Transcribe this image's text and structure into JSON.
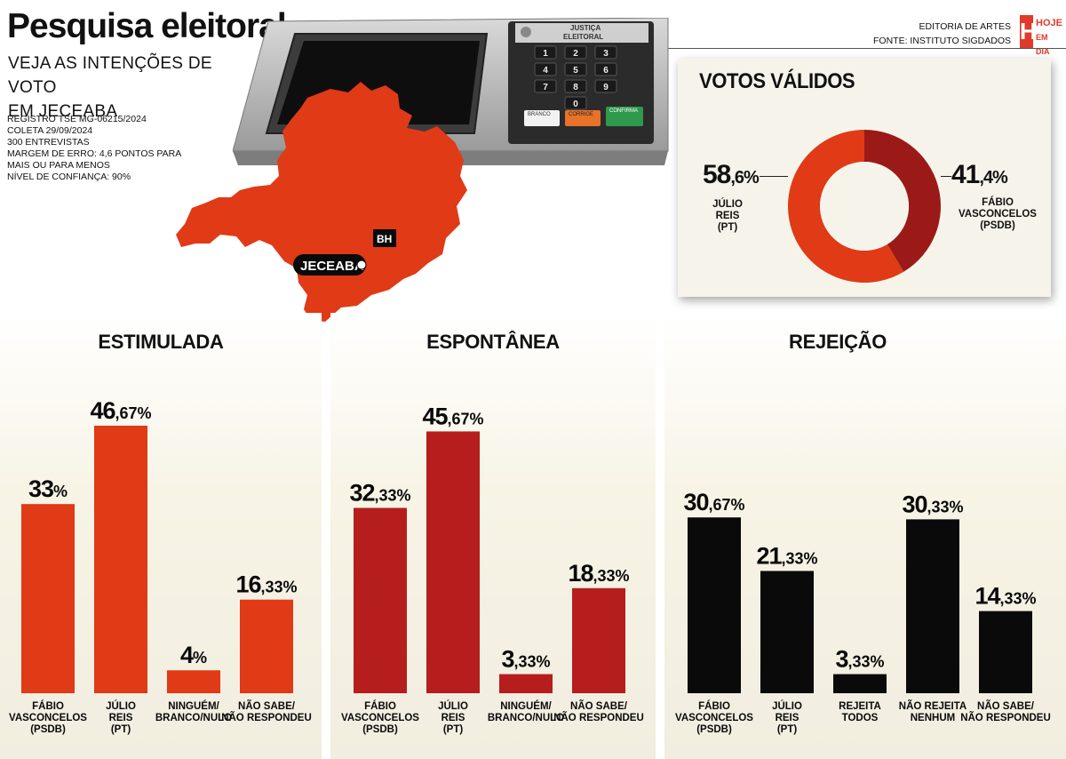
{
  "header": {
    "title": "Pesquisa eleitoral",
    "subtitle_lines": [
      "VEJA AS INTENÇÕES DE VOTO",
      "EM JECEABA"
    ],
    "meta_lines": [
      "REGISTRO TSE MG-06215/2024",
      "COLETA 29/09/2024",
      "300 ENTREVISTAS",
      "MARGEM DE ERRO: 4,6 PONTOS PARA",
      "MAIS OU PARA MENOS",
      "NÍVEL DE CONFIANÇA: 90%"
    ],
    "credit_1": "EDITORIA DE ARTES",
    "credit_2": "FONTE: INSTITUTO SIGDADOS",
    "logo_letter": "H",
    "logo_word_1": "HOJE",
    "logo_word_2": "EM DIA"
  },
  "urna": {
    "label_1": "JUSTIÇA",
    "label_2": "ELEITORAL",
    "keys": [
      "1",
      "2",
      "3",
      "4",
      "5",
      "6",
      "7",
      "8",
      "9",
      "0"
    ],
    "btn_branco": "BRANCO",
    "btn_corrige": "CORRIGE",
    "btn_confirma": "CONFIRMA"
  },
  "map": {
    "capital_label": "BH",
    "city_label": "JECEABA",
    "color": "#e03a16"
  },
  "colors": {
    "estimulada": "#e03a16",
    "espontanea": "#b51e1c",
    "rejeicao": "#0a0a0a",
    "donut_primary": "#e03a16",
    "donut_secondary": "#9b1a18"
  },
  "chart_data": [
    {
      "type": "pie",
      "title": "VOTOS VÁLIDOS",
      "slices": [
        {
          "label": "JÚLIO REIS (PT)",
          "label_lines": [
            "JÚLIO REIS",
            "(PT)"
          ],
          "value": 58.6,
          "int": "58",
          "dec": ",6%"
        },
        {
          "label": "FÁBIO VASCONCELOS (PSDB)",
          "label_lines": [
            "FÁBIO VASCONCELOS",
            "(PSDB)"
          ],
          "value": 41.4,
          "int": "41",
          "dec": ",4%"
        }
      ]
    },
    {
      "type": "bar",
      "title": "ESTIMULADA",
      "categories": [
        [
          "FÁBIO",
          "VASCONCELOS",
          "(PSDB)"
        ],
        [
          "JÚLIO",
          "REIS",
          "(PT)"
        ],
        [
          "NINGUÉM/",
          "BRANCO/NULO"
        ],
        [
          "NÃO SABE/",
          "NÃO RESPONDEU"
        ]
      ],
      "values": [
        33,
        46.67,
        4,
        16.33
      ],
      "labels": [
        {
          "int": "33",
          "dec": "%"
        },
        {
          "int": "46",
          "dec": ",67%"
        },
        {
          "int": "4",
          "dec": "%"
        },
        {
          "int": "16",
          "dec": ",33%"
        }
      ],
      "ylim": [
        0,
        50
      ]
    },
    {
      "type": "bar",
      "title": "ESPONTÂNEA",
      "categories": [
        [
          "FÁBIO",
          "VASCONCELOS",
          "(PSDB)"
        ],
        [
          "JÚLIO",
          "REIS",
          "(PT)"
        ],
        [
          "NINGUÉM/",
          "BRANCO/NULO"
        ],
        [
          "NÃO SABE/",
          "NÃO RESPONDEU"
        ]
      ],
      "values": [
        32.33,
        45.67,
        3.33,
        18.33
      ],
      "labels": [
        {
          "int": "32",
          "dec": ",33%"
        },
        {
          "int": "45",
          "dec": ",67%"
        },
        {
          "int": "3",
          "dec": ",33%"
        },
        {
          "int": "18",
          "dec": ",33%"
        }
      ],
      "ylim": [
        0,
        50
      ]
    },
    {
      "type": "bar",
      "title": "REJEIÇÃO",
      "categories": [
        [
          "FÁBIO",
          "VASCONCELOS",
          "(PSDB)"
        ],
        [
          "JÚLIO",
          "REIS",
          "(PT)"
        ],
        [
          "REJEITA",
          "TODOS"
        ],
        [
          "NÃO REJEITA",
          "NENHUM"
        ],
        [
          "NÃO SABE/",
          "NÃO RESPONDEU"
        ]
      ],
      "values": [
        30.67,
        21.33,
        3.33,
        30.33,
        14.33
      ],
      "labels": [
        {
          "int": "30",
          "dec": ",67%"
        },
        {
          "int": "21",
          "dec": ",33%"
        },
        {
          "int": "3",
          "dec": ",33%"
        },
        {
          "int": "30",
          "dec": ",33%"
        },
        {
          "int": "14",
          "dec": ",33%"
        }
      ],
      "ylim": [
        0,
        50
      ]
    }
  ]
}
